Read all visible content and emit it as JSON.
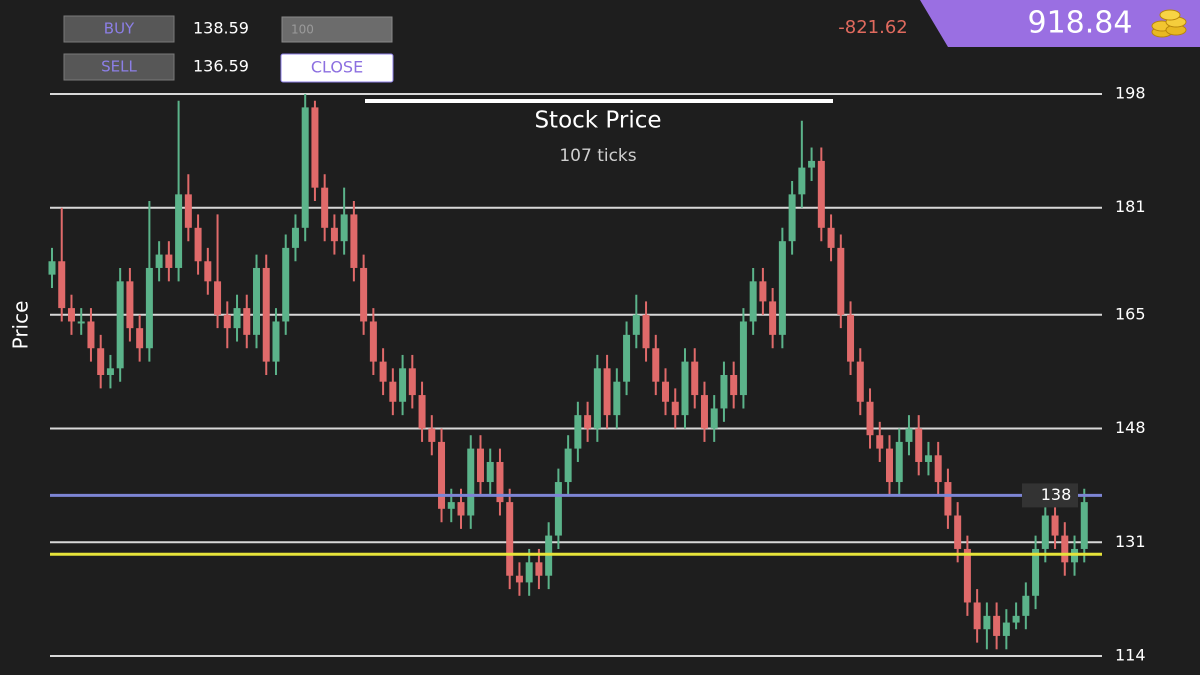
{
  "ui": {
    "buy_label": "BUY",
    "buy_price": "138.59",
    "quantity": "100",
    "sell_label": "SELL",
    "sell_price": "136.59",
    "close_label": "CLOSE",
    "profit": "-821.62",
    "balance": "918.84"
  },
  "chart_data": {
    "type": "candlestick",
    "title": "Stock Price",
    "subtitle": "107 ticks",
    "y_label": "Price",
    "up_color": "#5bb38a",
    "down_color": "#e06a6a",
    "open": [
      171,
      173,
      166,
      164,
      164,
      160,
      156,
      157,
      170,
      163,
      160,
      172,
      174,
      172,
      183,
      178,
      173,
      170,
      165,
      163,
      166,
      162,
      172,
      158,
      164,
      175,
      178,
      196,
      184,
      178,
      176,
      180,
      172,
      164,
      158,
      155,
      152,
      157,
      153,
      148,
      146,
      136,
      137,
      135,
      145,
      140,
      143,
      137,
      126,
      125,
      128,
      126,
      132,
      140,
      145,
      150,
      148,
      157,
      150,
      155,
      162,
      165,
      160,
      155,
      152,
      150,
      158,
      153,
      148,
      151,
      156,
      153,
      164,
      170,
      167,
      162,
      176,
      183,
      187,
      188,
      178,
      175,
      165,
      158,
      152,
      147,
      145,
      140,
      146,
      148,
      143,
      144,
      140,
      135,
      130,
      122,
      118,
      120,
      117,
      119,
      120,
      123,
      130,
      135,
      132,
      128,
      130
    ],
    "high": [
      175,
      181,
      168,
      166,
      166,
      162,
      159,
      172,
      172,
      165,
      182,
      176,
      176,
      197,
      186,
      180,
      175,
      180,
      167,
      168,
      168,
      174,
      174,
      166,
      177,
      180,
      198,
      197,
      186,
      180,
      184,
      182,
      174,
      166,
      160,
      157,
      159,
      159,
      155,
      150,
      148,
      139,
      139,
      147,
      147,
      145,
      145,
      139,
      128,
      130,
      130,
      134,
      142,
      147,
      152,
      152,
      159,
      159,
      157,
      164,
      168,
      167,
      162,
      157,
      154,
      160,
      160,
      155,
      153,
      158,
      158,
      166,
      172,
      172,
      169,
      178,
      185,
      194,
      190,
      190,
      180,
      177,
      167,
      160,
      154,
      149,
      147,
      148,
      150,
      150,
      146,
      146,
      142,
      137,
      132,
      124,
      122,
      122,
      121,
      122,
      125,
      132,
      137,
      137,
      134,
      132,
      139
    ],
    "low": [
      169,
      164,
      162,
      162,
      158,
      154,
      154,
      155,
      161,
      158,
      158,
      170,
      170,
      170,
      176,
      171,
      168,
      163,
      160,
      161,
      160,
      160,
      156,
      156,
      162,
      173,
      176,
      182,
      176,
      174,
      174,
      170,
      162,
      156,
      153,
      150,
      150,
      151,
      146,
      144,
      134,
      134,
      133,
      133,
      138,
      138,
      135,
      124,
      123,
      123,
      124,
      124,
      130,
      138,
      143,
      146,
      146,
      148,
      148,
      153,
      160,
      158,
      153,
      150,
      148,
      148,
      151,
      146,
      146,
      149,
      151,
      151,
      162,
      165,
      160,
      160,
      174,
      181,
      185,
      176,
      173,
      163,
      156,
      150,
      145,
      143,
      138,
      138,
      144,
      141,
      141,
      138,
      133,
      128,
      120,
      116,
      115,
      115,
      115,
      118,
      118,
      121,
      128,
      130,
      126,
      126,
      128
    ],
    "close": [
      173,
      166,
      164,
      164,
      160,
      156,
      157,
      170,
      163,
      160,
      172,
      174,
      172,
      183,
      178,
      173,
      170,
      165,
      163,
      166,
      162,
      172,
      158,
      164,
      175,
      178,
      196,
      184,
      178,
      176,
      180,
      172,
      164,
      158,
      155,
      152,
      157,
      153,
      148,
      146,
      136,
      137,
      135,
      145,
      140,
      143,
      137,
      126,
      125,
      128,
      126,
      132,
      140,
      145,
      150,
      148,
      157,
      150,
      155,
      162,
      165,
      160,
      155,
      152,
      150,
      158,
      153,
      148,
      151,
      156,
      153,
      164,
      170,
      167,
      162,
      176,
      183,
      187,
      188,
      178,
      175,
      165,
      158,
      152,
      147,
      145,
      140,
      146,
      148,
      143,
      144,
      140,
      135,
      130,
      122,
      118,
      120,
      117,
      119,
      120,
      123,
      130,
      135,
      132,
      128,
      130,
      137
    ],
    "ylim": [
      114,
      198
    ],
    "yticks": [
      114,
      131,
      148,
      165,
      181,
      198
    ],
    "grid": true,
    "current_price": {
      "value": 138,
      "color": "#7d85d4"
    },
    "position_line": {
      "value": 129.2,
      "color": "#e6e33a"
    }
  }
}
